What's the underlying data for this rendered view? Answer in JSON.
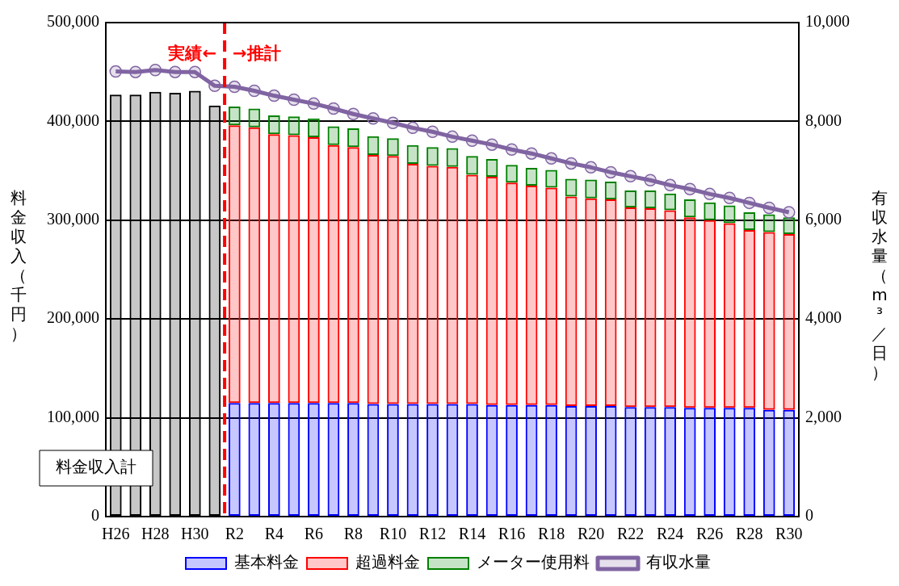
{
  "chart_data": {
    "type": "bar",
    "stacked": true,
    "categories": [
      "H26",
      null,
      "H28",
      null,
      "H30",
      null,
      "R2",
      null,
      "R4",
      null,
      "R6",
      null,
      "R8",
      null,
      "R10",
      null,
      "R12",
      null,
      "R14",
      null,
      "R16",
      null,
      "R18",
      null,
      "R20",
      null,
      "R22",
      null,
      "R24",
      null,
      "R26",
      null,
      "R28",
      null,
      "R30"
    ],
    "ylabel": "料金収入（千円）",
    "y2label": "有収水量（m³／日）",
    "ylim": [
      0,
      500000
    ],
    "yticks": [
      0,
      {
        "value": 100000,
        "label": "100,000"
      },
      {
        "value": 200000,
        "label": "200,000"
      },
      {
        "value": 300000,
        "label": "300,000"
      },
      {
        "value": 400000,
        "label": "400,000"
      },
      {
        "value": 500000,
        "label": "500,000"
      }
    ],
    "y2lim": [
      0,
      10000
    ],
    "y2ticks": [
      0,
      {
        "value": 2000,
        "label": "2,000"
      },
      {
        "value": 4000,
        "label": "4,000"
      },
      {
        "value": 6000,
        "label": "6,000"
      },
      {
        "value": 8000,
        "label": "8,000"
      },
      {
        "value": 10000,
        "label": "10,000"
      }
    ],
    "grid": "y",
    "legend": "bottom",
    "series": [
      {
        "name": "料金収入計",
        "color": "#000000",
        "values": [
          427000,
          427000,
          430000,
          429000,
          431000,
          416000,
          null,
          null,
          null,
          null,
          null,
          null,
          null,
          null,
          null,
          null,
          null,
          null,
          null,
          null,
          null,
          null,
          null,
          null,
          null,
          null,
          null,
          null,
          null,
          null,
          null,
          null,
          null,
          null,
          null
        ]
      },
      {
        "name": "基本料金",
        "color": "#0000ff",
        "values": [
          null,
          null,
          null,
          null,
          null,
          null,
          115000,
          115000,
          115000,
          115000,
          115000,
          115000,
          115000,
          114000,
          114000,
          114000,
          114000,
          114000,
          114000,
          113000,
          113000,
          113000,
          113000,
          112000,
          112000,
          112000,
          111000,
          111000,
          111000,
          110000,
          110000,
          110000,
          110000,
          108000,
          108000
        ]
      },
      {
        "name": "超過料金",
        "color": "#ff0000",
        "values": [
          null,
          null,
          null,
          null,
          null,
          null,
          281000,
          279000,
          272000,
          271000,
          269000,
          261000,
          259000,
          252000,
          251000,
          243000,
          241000,
          240000,
          232000,
          231000,
          225000,
          222000,
          220000,
          212000,
          210000,
          209000,
          202000,
          201000,
          199000,
          193000,
          190000,
          187000,
          180000,
          180000,
          178000
        ]
      },
      {
        "name": "メーター使用料",
        "color": "#008000",
        "values": [
          null,
          null,
          null,
          null,
          null,
          null,
          19000,
          19000,
          19000,
          19000,
          19000,
          19000,
          19000,
          19000,
          18000,
          19000,
          19000,
          19000,
          19000,
          18000,
          18000,
          18000,
          18000,
          18000,
          19000,
          18000,
          17000,
          18000,
          17000,
          18000,
          18000,
          18000,
          18000,
          18000,
          17000
        ]
      },
      {
        "name": "有収水量",
        "type": "line",
        "axis": "y2",
        "color": "#8064a2",
        "marker": "circle",
        "values": [
          9010,
          9000,
          9040,
          9000,
          9000,
          8720,
          8700,
          8620,
          8520,
          8440,
          8360,
          8260,
          8150,
          8060,
          7970,
          7870,
          7790,
          7690,
          7610,
          7530,
          7430,
          7350,
          7250,
          7150,
          7070,
          6970,
          6890,
          6810,
          6710,
          6630,
          6530,
          6450,
          6350,
          6250,
          6160
        ]
      }
    ],
    "ref_lines": [
      {
        "axis": "x",
        "value": "R2",
        "color": "#ff0000",
        "line_style": "dashed"
      }
    ],
    "annotations": [
      "実績←",
      "→推計"
    ]
  }
}
